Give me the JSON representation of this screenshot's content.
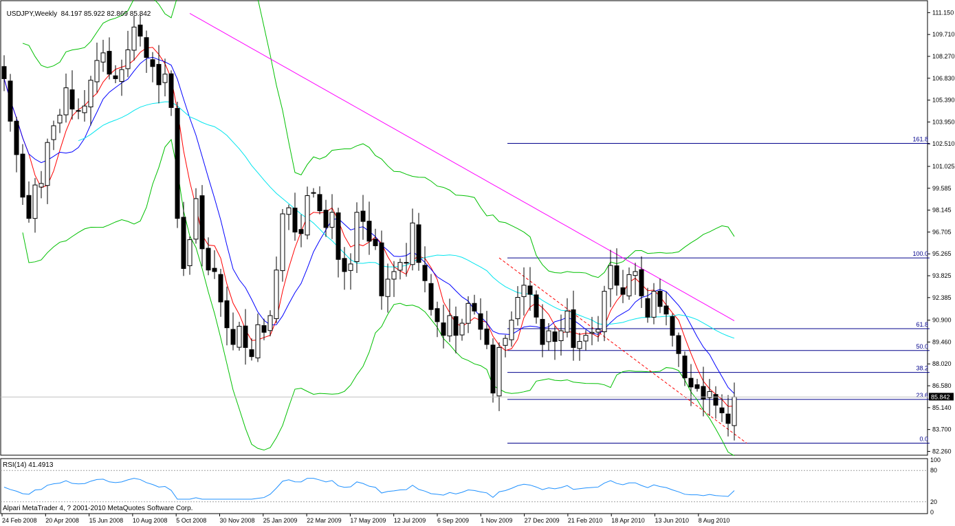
{
  "window": {
    "symbol_title": "USDJPY,Weekly",
    "ohlc": "84.197 85.922 82.869 85.842",
    "last_price_label": "85.842",
    "copyright": "Alpari MetaTrader 4, ? 2001-2010 MetaQuotes Software Corp."
  },
  "colors": {
    "bull_candle": "#ffffff",
    "bear_candle": "#000000",
    "ma_fast": "#ff0000",
    "ma_mid": "#0000ff",
    "ma_slow": "#00e5ee",
    "ma_long": "#ff00ff",
    "bollinger": "#00c000",
    "fibonacci": "#00008b",
    "trendline": "#ff0000",
    "rsi": "#1e90ff"
  },
  "chart_data": {
    "type": "candlestick",
    "timeframe": "Weekly",
    "ylim": [
      82.0,
      112.0
    ],
    "price_ticks": [
      "111.150",
      "109.710",
      "108.270",
      "106.830",
      "105.390",
      "103.950",
      "102.510",
      "101.025",
      "99.585",
      "98.145",
      "96.705",
      "95.265",
      "93.825",
      "92.385",
      "90.900",
      "89.460",
      "88.020",
      "86.580",
      "85.140",
      "83.700",
      "82.260"
    ],
    "time_labels": [
      "24 Feb 2008",
      "20 Apr 2008",
      "15 Jun 2008",
      "10 Aug 2008",
      "5 Oct 2008",
      "30 Nov 2008",
      "25 Jan 2009",
      "22 Mar 2009",
      "17 May 2009",
      "12 Jul 2009",
      "6 Sep 2009",
      "1 Nov 2009",
      "27 Dec 2009",
      "21 Feb 2010",
      "18 Apr 2010",
      "13 Jun 2010",
      "8 Aug 2010"
    ],
    "closes": [
      106.8,
      104.0,
      101.8,
      99.0,
      97.6,
      99.8,
      99.9,
      102.6,
      103.7,
      104.4,
      106.2,
      104.8,
      104.7,
      105.0,
      106.7,
      108.0,
      108.5,
      107.1,
      106.8,
      107.4,
      108.7,
      110.2,
      109.6,
      108.2,
      107.6,
      106.4,
      107.1,
      104.9,
      97.6,
      94.3,
      96.2,
      98.9,
      95.6,
      94.2,
      94.1,
      92.1,
      90.4,
      89.3,
      90.5,
      89.1,
      88.5,
      90.6,
      90.1,
      91.2,
      94.2,
      97.9,
      98.3,
      96.7,
      96.6,
      99.1,
      99.3,
      98.1,
      97.0,
      98.0,
      94.9,
      94.1,
      94.6,
      98.0,
      97.4,
      96.1,
      95.8,
      92.5,
      93.6,
      94.1,
      94.7,
      94.7,
      97.3,
      94.7,
      93.5,
      91.6,
      90.8,
      89.9,
      91.2,
      89.9,
      90.7,
      92.0,
      91.5,
      90.3,
      89.3,
      86.1,
      89.1,
      89.7,
      90.9,
      92.4,
      93.2,
      92.6,
      91.1,
      89.3,
      90.2,
      89.5,
      90.2,
      91.5,
      89.1,
      89.5,
      89.9,
      90.1,
      90.3,
      92.8,
      94.5,
      93.2,
      92.6,
      93.9,
      94.1,
      92.5,
      91.1,
      92.8,
      91.8,
      91.3,
      89.9,
      88.7,
      87.1,
      86.5,
      86.4,
      85.7,
      86.2,
      85.3,
      84.8,
      84.1,
      85.84
    ],
    "fibonacci": {
      "high": 95.0,
      "low": 82.8,
      "levels": [
        {
          "label": "161.8",
          "value": 102.54
        },
        {
          "label": "100.0",
          "value": 95.0
        },
        {
          "label": "61.8",
          "value": 90.34
        },
        {
          "label": "50.0",
          "value": 88.9
        },
        {
          "label": "38.2",
          "value": 87.46
        },
        {
          "label": "23.6",
          "value": 85.68
        },
        {
          "label": "0.0",
          "value": 82.8
        }
      ]
    },
    "trendline": {
      "from": [
        80,
        95.0
      ],
      "to": [
        115,
        82.8
      ]
    },
    "moving_averages": [
      {
        "period": 5,
        "color_key": "ma_fast"
      },
      {
        "period": 10,
        "color_key": "ma_mid"
      },
      {
        "period": 30,
        "color_key": "ma_slow"
      },
      {
        "period": 100,
        "color_key": "ma_long"
      }
    ],
    "rsi": {
      "label": "RSI(14) 41.4913",
      "levels": [
        "80",
        "20"
      ],
      "scale": [
        "100",
        "80",
        "20",
        "0"
      ],
      "last": 41.49
    }
  }
}
